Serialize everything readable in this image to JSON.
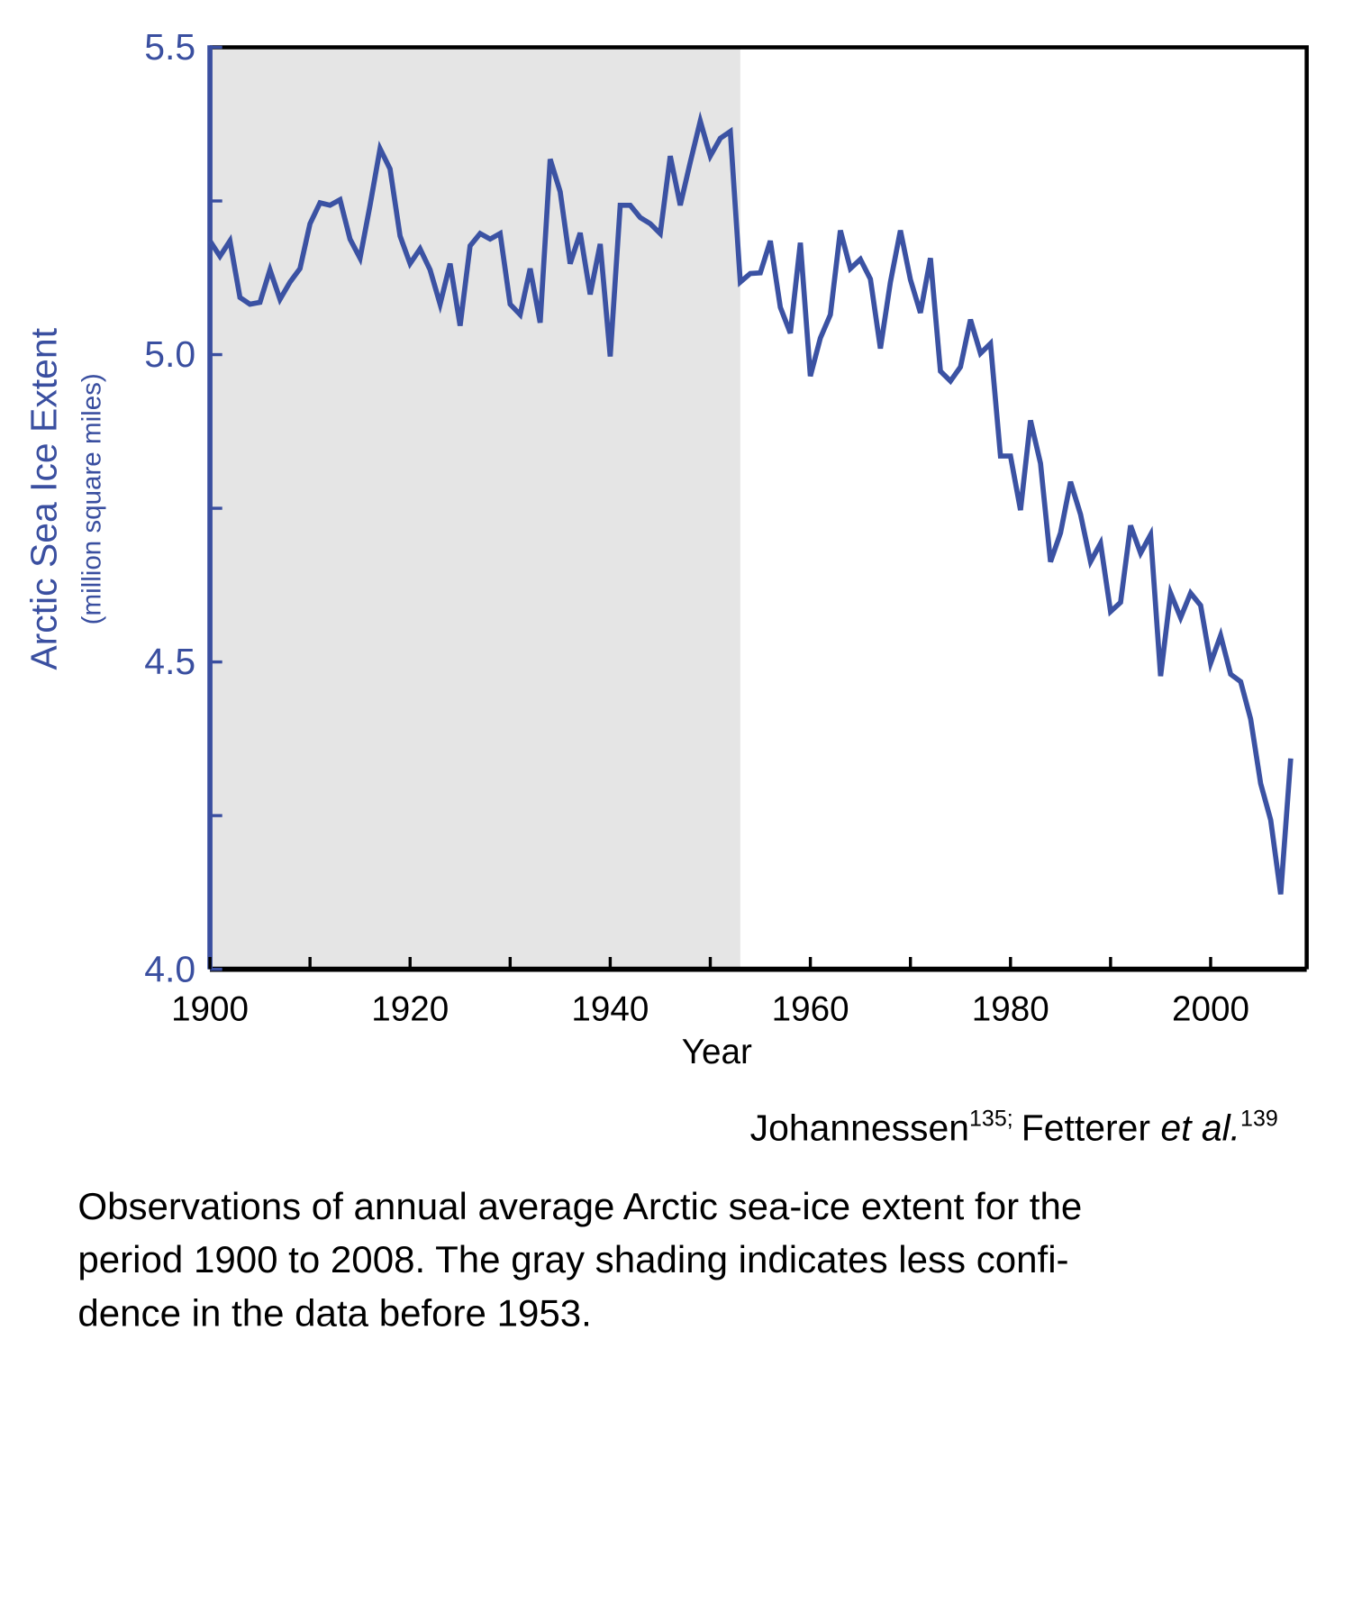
{
  "chart_data": {
    "type": "line",
    "y_label": "Arctic Sea Ice Extent",
    "y_sublabel": "(million square miles)",
    "x_label": "Year",
    "source": {
      "author1": "Johannessen",
      "ref1": "135;",
      "author2": "Fetterer",
      "etal": "et al.",
      "ref2": "139"
    },
    "caption": [
      "Observations of annual average Arctic sea-ice extent for the",
      "period 1900 to 2008. The gray shading indicates less confi-",
      "dence in the data before 1953."
    ],
    "shaded_range": [
      1900,
      1953
    ],
    "xlim": [
      1900,
      2009.6
    ],
    "xticks": [
      1900,
      1920,
      1940,
      1960,
      1980,
      2000
    ],
    "xminor_ticks": [
      1910,
      1930,
      1950,
      1970,
      1990
    ],
    "ylim": [
      4.0,
      5.5
    ],
    "yticks": [
      {
        "value": 4.0,
        "label": "4.0"
      },
      {
        "value": 4.5,
        "label": "4.5"
      },
      {
        "value": 5.0,
        "label": "5.0"
      },
      {
        "value": 5.5,
        "label": "5.5"
      }
    ],
    "yminor_ticks": [
      4.25,
      4.75,
      5.25
    ],
    "axis_color": "#3a4fa0",
    "series": [
      {
        "color": "#3b52a3",
        "x": [
          1900,
          1901,
          1902,
          1903,
          1904,
          1905,
          1906,
          1907,
          1908,
          1909,
          1910,
          1911,
          1912,
          1913,
          1914,
          1915,
          1916,
          1917,
          1918,
          1919,
          1920,
          1921,
          1922,
          1923,
          1924,
          1925,
          1926,
          1927,
          1928,
          1929,
          1930,
          1931,
          1932,
          1933,
          1934,
          1935,
          1936,
          1937,
          1938,
          1939,
          1940,
          1941,
          1942,
          1943,
          1944,
          1945,
          1946,
          1947,
          1948,
          1949,
          1950,
          1951,
          1952,
          1953,
          1954,
          1955,
          1956,
          1957,
          1958,
          1959,
          1960,
          1961,
          1962,
          1963,
          1964,
          1965,
          1966,
          1967,
          1968,
          1969,
          1970,
          1971,
          1972,
          1973,
          1974,
          1975,
          1976,
          1977,
          1978,
          1979,
          1980,
          1981,
          1982,
          1983,
          1984,
          1985,
          1986,
          1987,
          1988,
          1989,
          1990,
          1991,
          1992,
          1993,
          1994,
          1995,
          1996,
          1997,
          1998,
          1999,
          2000,
          2001,
          2002,
          2003,
          2004,
          2005,
          2006,
          2007,
          2008
        ],
        "values": [
          5.185,
          5.16,
          5.185,
          5.093,
          5.082,
          5.085,
          5.138,
          5.09,
          5.118,
          5.14,
          5.213,
          5.247,
          5.243,
          5.252,
          5.188,
          5.157,
          5.243,
          5.335,
          5.302,
          5.193,
          5.148,
          5.172,
          5.138,
          5.082,
          5.148,
          5.047,
          5.177,
          5.197,
          5.188,
          5.197,
          5.082,
          5.065,
          5.14,
          5.052,
          5.318,
          5.265,
          5.148,
          5.198,
          5.098,
          5.18,
          4.997,
          5.243,
          5.243,
          5.223,
          5.213,
          5.197,
          5.323,
          5.243,
          5.313,
          5.38,
          5.323,
          5.352,
          5.363,
          5.118,
          5.132,
          5.133,
          5.185,
          5.077,
          5.035,
          5.182,
          4.965,
          5.027,
          5.065,
          5.202,
          5.14,
          5.155,
          5.123,
          5.01,
          5.118,
          5.202,
          5.122,
          5.068,
          5.157,
          4.973,
          4.957,
          4.98,
          5.057,
          5.002,
          5.018,
          4.835,
          4.835,
          4.747,
          4.893,
          4.823,
          4.663,
          4.71,
          4.793,
          4.74,
          4.663,
          4.693,
          4.582,
          4.597,
          4.722,
          4.677,
          4.707,
          4.477,
          4.612,
          4.572,
          4.612,
          4.592,
          4.498,
          4.543,
          4.48,
          4.468,
          4.407,
          4.302,
          4.243,
          4.122,
          4.343
        ]
      }
    ]
  }
}
